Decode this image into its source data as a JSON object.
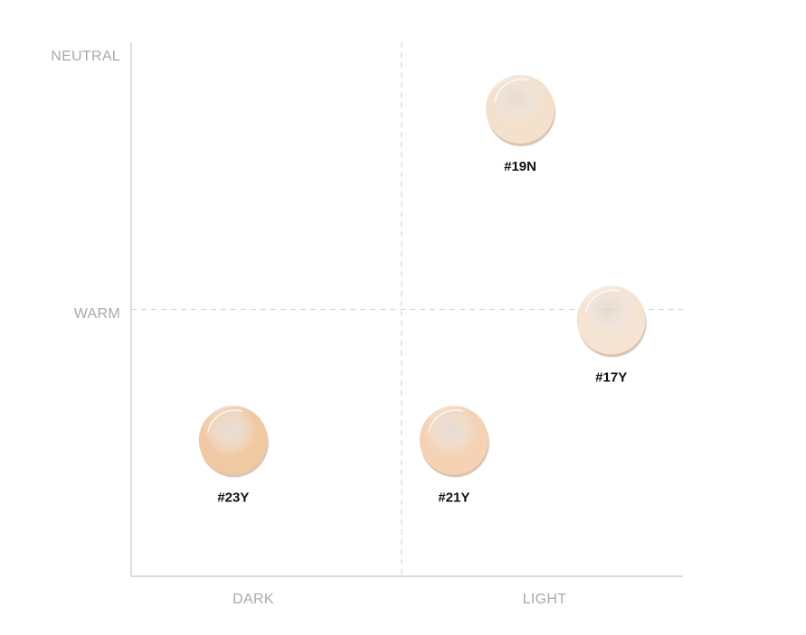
{
  "chart_data": {
    "type": "scatter",
    "title": "",
    "x_axis": {
      "left_label": "DARK",
      "right_label": "LIGHT",
      "range": [
        0,
        10
      ]
    },
    "y_axis": {
      "top_label": "NEUTRAL",
      "middle_label": "WARM",
      "range": [
        0,
        10
      ]
    },
    "dividers": {
      "x": 4.9,
      "y": 5.0
    },
    "grid": false,
    "legend": "none",
    "points": [
      {
        "label": "#19N",
        "x": 7.05,
        "y": 8.75,
        "color": "#f3e1cc"
      },
      {
        "label": "#17Y",
        "x": 8.7,
        "y": 4.8,
        "color": "#f5e4d3"
      },
      {
        "label": "#23Y",
        "x": 1.85,
        "y": 2.55,
        "color": "#f0c9a2"
      },
      {
        "label": "#21Y",
        "x": 5.85,
        "y": 2.55,
        "color": "#f4d2b3"
      }
    ]
  }
}
